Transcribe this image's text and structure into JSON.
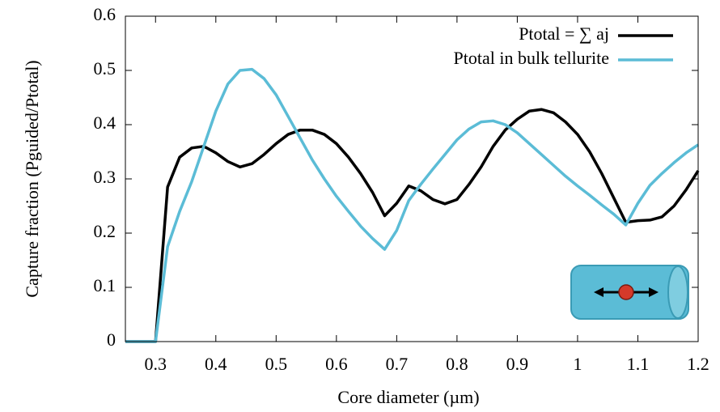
{
  "chart_data": {
    "type": "line",
    "xlabel": "Core diameter (µm)",
    "ylabel": "Capture fraction (Pguided/Ptotal)",
    "x": [
      0.25,
      0.28,
      0.3,
      0.32,
      0.34,
      0.36,
      0.38,
      0.4,
      0.42,
      0.44,
      0.46,
      0.48,
      0.5,
      0.52,
      0.54,
      0.56,
      0.58,
      0.6,
      0.62,
      0.64,
      0.66,
      0.68,
      0.7,
      0.72,
      0.74,
      0.76,
      0.78,
      0.8,
      0.82,
      0.84,
      0.86,
      0.88,
      0.9,
      0.92,
      0.94,
      0.96,
      0.98,
      1.0,
      1.02,
      1.04,
      1.06,
      1.08,
      1.1,
      1.12,
      1.14,
      1.16,
      1.18,
      1.2
    ],
    "series": [
      {
        "name": "Ptotal = ∑ aj",
        "color": "#000000",
        "values": [
          0,
          0,
          0,
          0.285,
          0.34,
          0.357,
          0.36,
          0.348,
          0.332,
          0.322,
          0.328,
          0.345,
          0.365,
          0.382,
          0.39,
          0.39,
          0.382,
          0.365,
          0.34,
          0.31,
          0.275,
          0.232,
          0.255,
          0.287,
          0.278,
          0.262,
          0.254,
          0.262,
          0.29,
          0.322,
          0.36,
          0.39,
          0.41,
          0.425,
          0.428,
          0.422,
          0.405,
          0.382,
          0.35,
          0.31,
          0.265,
          0.22,
          0.223,
          0.224,
          0.23,
          0.25,
          0.28,
          0.315
        ]
      },
      {
        "name": "Ptotal in bulk tellurite",
        "color": "#5bbcd6",
        "values": [
          0,
          0,
          0,
          0.175,
          0.24,
          0.295,
          0.36,
          0.425,
          0.475,
          0.5,
          0.502,
          0.485,
          0.455,
          0.415,
          0.375,
          0.335,
          0.3,
          0.268,
          0.24,
          0.213,
          0.19,
          0.17,
          0.205,
          0.26,
          0.29,
          0.318,
          0.345,
          0.372,
          0.392,
          0.405,
          0.407,
          0.4,
          0.385,
          0.365,
          0.345,
          0.325,
          0.305,
          0.287,
          0.27,
          0.252,
          0.235,
          0.215,
          0.255,
          0.288,
          0.31,
          0.33,
          0.348,
          0.363
        ]
      }
    ],
    "xlim": [
      0.25,
      1.2
    ],
    "xticks": [
      0.3,
      0.4,
      0.5,
      0.6,
      0.7,
      0.8,
      0.9,
      {
        "value": 1,
        "label": "1"
      },
      1.1,
      1.2
    ],
    "ylim": [
      0,
      0.6
    ],
    "yticks": [
      0,
      0.1,
      0.2,
      0.3,
      0.4,
      0.5,
      0.6
    ],
    "grid": false,
    "legend": "top-right"
  }
}
